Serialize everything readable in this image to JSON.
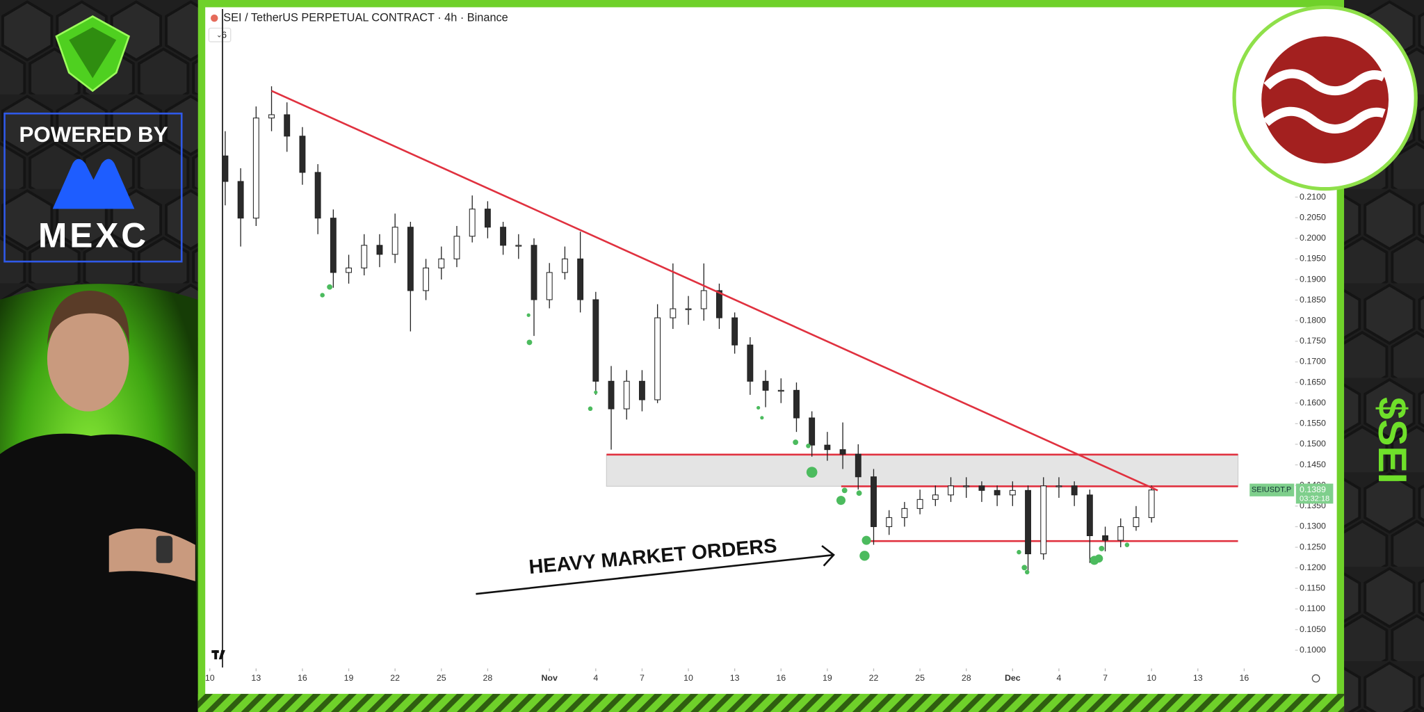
{
  "chart_data": {
    "type": "candlestick",
    "title": "SEI / TetherUS PERPETUAL CONTRACT · 4h · Binance",
    "hidden_indicators": 6,
    "x": [
      1,
      2,
      3,
      4,
      5,
      6,
      7,
      8,
      9,
      10,
      11,
      12,
      13,
      14,
      15,
      16,
      17,
      18,
      19,
      20,
      21,
      22,
      23,
      24,
      25,
      26,
      27,
      28,
      29,
      30,
      31,
      32,
      33,
      34,
      35,
      36,
      37,
      38,
      39,
      40,
      41,
      42,
      43,
      44,
      45,
      46,
      47,
      48,
      49,
      50,
      51,
      52,
      53,
      54,
      55,
      56,
      57,
      58,
      59,
      60,
      61
    ],
    "open": [
      0.22,
      0.2138,
      0.2049,
      0.2292,
      0.23,
      0.2248,
      0.216,
      0.2049,
      0.1917,
      0.1928,
      0.1983,
      0.1961,
      0.2027,
      0.1873,
      0.1928,
      0.195,
      0.2005,
      0.2071,
      0.2027,
      0.1983,
      0.1983,
      0.1851,
      0.1917,
      0.195,
      0.1851,
      0.1653,
      0.1586,
      0.1653,
      0.1608,
      0.1807,
      0.1829,
      0.1829,
      0.1873,
      0.1807,
      0.1741,
      0.1653,
      0.1631,
      0.1631,
      0.1564,
      0.1498,
      0.1487,
      0.1476,
      0.1421,
      0.13,
      0.1322,
      0.1344,
      0.1366,
      0.1377,
      0.1399,
      0.1399,
      0.1388,
      0.1377,
      0.1388,
      0.1234,
      0.1399,
      0.1399,
      0.1377,
      0.1278,
      0.1267,
      0.13,
      0.1322
    ],
    "high": [
      0.226,
      0.217,
      0.232,
      0.2369,
      0.233,
      0.227,
      0.218,
      0.207,
      0.196,
      0.201,
      0.201,
      0.206,
      0.204,
      0.195,
      0.198,
      0.203,
      0.2104,
      0.209,
      0.204,
      0.201,
      0.2,
      0.194,
      0.198,
      0.2016,
      0.187,
      0.169,
      0.168,
      0.168,
      0.184,
      0.1939,
      0.186,
      0.1939,
      0.189,
      0.182,
      0.176,
      0.168,
      0.166,
      0.165,
      0.158,
      0.153,
      0.1553,
      0.15,
      0.144,
      0.134,
      0.136,
      0.139,
      0.14,
      0.142,
      0.142,
      0.141,
      0.14,
      0.141,
      0.14,
      0.142,
      0.142,
      0.141,
      0.139,
      0.13,
      0.132,
      0.135,
      0.14
    ],
    "low": [
      0.208,
      0.198,
      0.203,
      0.226,
      0.221,
      0.213,
      0.201,
      0.188,
      0.189,
      0.191,
      0.193,
      0.194,
      0.1774,
      0.185,
      0.19,
      0.193,
      0.199,
      0.2,
      0.196,
      0.195,
      0.1763,
      0.183,
      0.19,
      0.182,
      0.162,
      0.1487,
      0.156,
      0.158,
      0.16,
      0.178,
      0.179,
      0.18,
      0.178,
      0.172,
      0.162,
      0.159,
      0.16,
      0.153,
      0.147,
      0.146,
      0.144,
      0.139,
      0.1256,
      0.128,
      0.13,
      0.133,
      0.135,
      0.136,
      0.137,
      0.136,
      0.135,
      0.135,
      0.119,
      0.122,
      0.137,
      0.135,
      0.1212,
      0.124,
      0.125,
      0.129,
      0.131
    ],
    "close": [
      0.2138,
      0.2049,
      0.2292,
      0.23,
      0.2248,
      0.216,
      0.2049,
      0.1917,
      0.1928,
      0.1983,
      0.1961,
      0.2027,
      0.1873,
      0.1928,
      0.195,
      0.2005,
      0.2071,
      0.2027,
      0.1983,
      0.1983,
      0.1851,
      0.1917,
      0.195,
      0.1851,
      0.1653,
      0.1586,
      0.1653,
      0.1608,
      0.1807,
      0.1829,
      0.1829,
      0.1873,
      0.1807,
      0.1741,
      0.1653,
      0.1631,
      0.1631,
      0.1564,
      0.1498,
      0.1487,
      0.1476,
      0.1421,
      0.13,
      0.1322,
      0.1344,
      0.1366,
      0.1377,
      0.1399,
      0.1399,
      0.1388,
      0.1377,
      0.1388,
      0.1234,
      0.1399,
      0.1399,
      0.1377,
      0.1278,
      0.1267,
      0.13,
      0.1322,
      0.1389
    ],
    "up_color": "#ffffff",
    "down_color": "#2a2a2a",
    "xlim": [
      -0.3,
      70.3
    ],
    "ylim": [
      0.0958,
      0.2556
    ],
    "xticks": [
      {
        "value": 0,
        "label": "10"
      },
      {
        "value": 3,
        "label": "13"
      },
      {
        "value": 6,
        "label": "16"
      },
      {
        "value": 9,
        "label": "19"
      },
      {
        "value": 12,
        "label": "22"
      },
      {
        "value": 15,
        "label": "25"
      },
      {
        "value": 18,
        "label": "28"
      },
      {
        "value": 22,
        "label": "Nov"
      },
      {
        "value": 25,
        "label": "4"
      },
      {
        "value": 28,
        "label": "7"
      },
      {
        "value": 31,
        "label": "10"
      },
      {
        "value": 34,
        "label": "13"
      },
      {
        "value": 37,
        "label": "16"
      },
      {
        "value": 40,
        "label": "19"
      },
      {
        "value": 43,
        "label": "22"
      },
      {
        "value": 46,
        "label": "25"
      },
      {
        "value": 49,
        "label": "28"
      },
      {
        "value": 52,
        "label": "Dec"
      },
      {
        "value": 55,
        "label": "4"
      },
      {
        "value": 58,
        "label": "7"
      },
      {
        "value": 61,
        "label": "10"
      },
      {
        "value": 64,
        "label": "13"
      },
      {
        "value": 67,
        "label": "16"
      }
    ],
    "yticks": [
      {
        "value": 0.1,
        "label": "0.1000"
      },
      {
        "value": 0.105,
        "label": "0.1050"
      },
      {
        "value": 0.11,
        "label": "0.1100"
      },
      {
        "value": 0.115,
        "label": "0.1150"
      },
      {
        "value": 0.12,
        "label": "0.1200"
      },
      {
        "value": 0.125,
        "label": "0.1250"
      },
      {
        "value": 0.13,
        "label": "0.1300"
      },
      {
        "value": 0.135,
        "label": "0.1350"
      },
      {
        "value": 0.14,
        "label": "0.1400"
      },
      {
        "value": 0.145,
        "label": "0.1450"
      },
      {
        "value": 0.15,
        "label": "0.1500"
      },
      {
        "value": 0.155,
        "label": "0.1550"
      },
      {
        "value": 0.16,
        "label": "0.1600"
      },
      {
        "value": 0.165,
        "label": "0.1650"
      },
      {
        "value": 0.17,
        "label": "0.1700"
      },
      {
        "value": 0.175,
        "label": "0.1750"
      },
      {
        "value": 0.18,
        "label": "0.1800"
      },
      {
        "value": 0.185,
        "label": "0.1850"
      },
      {
        "value": 0.19,
        "label": "0.1900"
      },
      {
        "value": 0.195,
        "label": "0.1950"
      },
      {
        "value": 0.2,
        "label": "0.2000"
      },
      {
        "value": 0.205,
        "label": "0.2050"
      },
      {
        "value": 0.21,
        "label": "0.2100"
      }
    ],
    "grid": false,
    "trendline": {
      "x": [
        4,
        61.4
      ],
      "y": [
        0.2358,
        0.1388
      ],
      "color": "#e0313f"
    },
    "zone": {
      "x": [
        25.7,
        66.6
      ],
      "y": [
        0.1398,
        0.1475
      ],
      "color": "#e4e4e4",
      "edge_color": "#e0313f"
    },
    "levels": [
      {
        "x": [
          40.9,
          66.6
        ],
        "y": 0.1398,
        "color": "#e0313f"
      },
      {
        "x": [
          42.4,
          66.6
        ],
        "y": 0.1265,
        "color": "#e0313f"
      }
    ],
    "annotation": "HEAVY MARKET ORDERS",
    "price_tag": {
      "symbol": "SEIUSDT.P",
      "countdown": "03:32:18",
      "color": "#7fcf8c"
    }
  },
  "overlay": {
    "powered_by": "POWERED BY",
    "brand": "MEXC",
    "ticker": "$SEI"
  }
}
